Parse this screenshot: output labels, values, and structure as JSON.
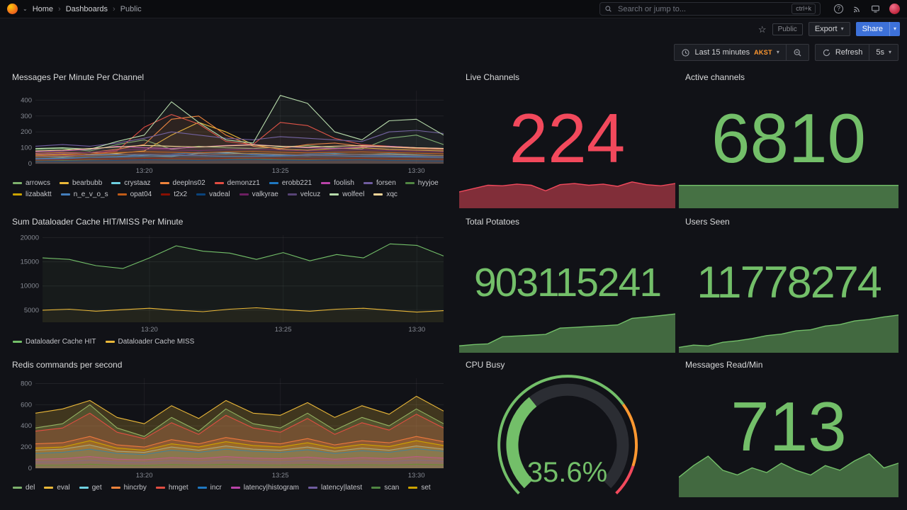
{
  "nav": {
    "breadcrumbs": [
      "Home",
      "Dashboards",
      "Public"
    ],
    "search_placeholder": "Search or jump to...",
    "shortcut": "ctrl+k"
  },
  "toolbar": {
    "visibility_badge": "Public",
    "export_label": "Export",
    "share_label": "Share"
  },
  "timebar": {
    "range_label": "Last 15 minutes",
    "timezone": "AKST",
    "refresh_label": "Refresh",
    "interval": "5s"
  },
  "icons": {
    "star": "☆",
    "chevron": "▾",
    "chevron_small": "⌄",
    "sep": "›",
    "help": "?"
  },
  "colors": {
    "background": "#111217",
    "accent_blue": "#3d71d9",
    "stat_green": "#73BF69",
    "stat_red": "#F2495C",
    "threshold_orange": "#FF9830",
    "timezone_orange": "#ff9830"
  },
  "panels": {
    "messages": {
      "title": "Messages Per Minute Per Channel"
    },
    "live": {
      "title": "Live Channels"
    },
    "active": {
      "title": "Active channels"
    },
    "dataloader": {
      "title": "Sum Dataloader Cache HIT/MISS Per Minute"
    },
    "potatoes": {
      "title": "Total Potatoes"
    },
    "users": {
      "title": "Users Seen"
    },
    "redis": {
      "title": "Redis commands per second"
    },
    "cpu": {
      "title": "CPU Busy"
    },
    "msgread": {
      "title": "Messages Read/Min"
    }
  },
  "chart_data": [
    {
      "id": "messages_per_minute",
      "type": "line",
      "title": "Messages Per Minute Per Channel",
      "xlabel": "",
      "ylabel": "",
      "ylim": [
        0,
        460
      ],
      "yticks": [
        0,
        100,
        200,
        300,
        400
      ],
      "x_ticks": [
        {
          "i": 4,
          "label": "13:20"
        },
        {
          "i": 9,
          "label": "13:25"
        },
        {
          "i": 14,
          "label": "13:30"
        }
      ],
      "fill_opacity": 0.05,
      "legend_position": "bottom",
      "series": [
        {
          "name": "arrowcs",
          "color": "#7EB26D",
          "values": [
            90,
            95,
            80,
            120,
            150,
            90,
            110,
            100,
            95,
            105,
            115,
            100,
            92,
            160,
            180,
            120
          ]
        },
        {
          "name": "bearbubb",
          "color": "#EAB839",
          "values": [
            55,
            60,
            70,
            65,
            80,
            180,
            260,
            200,
            120,
            90,
            85,
            95,
            100,
            90,
            85,
            80
          ]
        },
        {
          "name": "crystaaz",
          "color": "#6ED0E0",
          "values": [
            45,
            40,
            55,
            60,
            50,
            45,
            65,
            70,
            60,
            55,
            50,
            60,
            58,
            62,
            55,
            50
          ]
        },
        {
          "name": "deeplns02",
          "color": "#EF843C",
          "values": [
            65,
            70,
            70,
            90,
            120,
            280,
            300,
            180,
            110,
            95,
            120,
            130,
            110,
            105,
            95,
            90
          ]
        },
        {
          "name": "demonzz1",
          "color": "#E24D42",
          "values": [
            45,
            50,
            60,
            80,
            230,
            310,
            250,
            140,
            120,
            260,
            240,
            160,
            120,
            110,
            100,
            95
          ]
        },
        {
          "name": "erobb221",
          "color": "#1F78C1",
          "values": [
            28,
            30,
            40,
            45,
            55,
            60,
            70,
            65,
            55,
            50,
            60,
            65,
            55,
            50,
            45,
            40
          ]
        },
        {
          "name": "foolish",
          "color": "#BA43A9",
          "values": [
            75,
            80,
            90,
            110,
            100,
            95,
            105,
            115,
            120,
            110,
            100,
            95,
            105,
            110,
            100,
            95
          ]
        },
        {
          "name": "forsen",
          "color": "#705DA0",
          "values": [
            110,
            120,
            110,
            130,
            160,
            200,
            180,
            160,
            150,
            170,
            160,
            150,
            140,
            200,
            210,
            190
          ]
        },
        {
          "name": "hyyjoe",
          "color": "#508642",
          "values": [
            18,
            20,
            25,
            30,
            35,
            30,
            28,
            32,
            30,
            28,
            26,
            30,
            32,
            28,
            26,
            25
          ]
        },
        {
          "name": "lizabaktt",
          "color": "#CCA300",
          "values": [
            42,
            45,
            50,
            55,
            60,
            58,
            54,
            60,
            65,
            60,
            55,
            58,
            60,
            56,
            52,
            50
          ]
        },
        {
          "name": "n_e_v_o_s",
          "color": "#447EBC",
          "values": [
            32,
            35,
            40,
            42,
            48,
            52,
            50,
            46,
            44,
            48,
            52,
            50,
            46,
            44,
            42,
            40
          ]
        },
        {
          "name": "opat04",
          "color": "#C15C17",
          "values": [
            50,
            55,
            60,
            70,
            75,
            72,
            68,
            74,
            78,
            72,
            68,
            72,
            74,
            70,
            66,
            62
          ]
        },
        {
          "name": "t2x2",
          "color": "#890F02",
          "values": [
            22,
            25,
            28,
            30,
            34,
            32,
            30,
            34,
            36,
            32,
            30,
            32,
            34,
            30,
            28,
            26
          ]
        },
        {
          "name": "vadeal",
          "color": "#0A437C",
          "values": [
            14,
            15,
            18,
            20,
            24,
            22,
            20,
            24,
            26,
            22,
            20,
            22,
            24,
            20,
            18,
            16
          ]
        },
        {
          "name": "valkyrae",
          "color": "#6D1F62",
          "values": [
            60,
            65,
            70,
            85,
            90,
            86,
            82,
            88,
            92,
            86,
            80,
            84,
            88,
            82,
            78,
            74
          ]
        },
        {
          "name": "velcuz",
          "color": "#584477",
          "values": [
            44,
            48,
            52,
            56,
            60,
            58,
            54,
            58,
            62,
            58,
            54,
            56,
            58,
            54,
            50,
            48
          ]
        },
        {
          "name": "wolfeel",
          "color": "#B7DBAB",
          "values": [
            95,
            100,
            90,
            140,
            180,
            390,
            260,
            150,
            130,
            430,
            380,
            200,
            150,
            270,
            280,
            180
          ]
        },
        {
          "name": "xqc",
          "color": "#F4D598",
          "values": [
            80,
            85,
            95,
            105,
            115,
            110,
            105,
            112,
            118,
            110,
            104,
            110,
            114,
            106,
            100,
            96
          ]
        }
      ]
    },
    {
      "id": "dataloader",
      "type": "line",
      "title": "Sum Dataloader Cache HIT/MISS Per Minute",
      "xlabel": "",
      "ylabel": "",
      "ylim": [
        2500,
        20500
      ],
      "yticks": [
        5000,
        10000,
        15000,
        20000
      ],
      "margin_left": 44,
      "x_ticks": [
        {
          "i": 4,
          "label": "13:20"
        },
        {
          "i": 9,
          "label": "13:25"
        },
        {
          "i": 14,
          "label": "13:30"
        }
      ],
      "fill_opacity": 0.06,
      "legend_position": "bottom",
      "series": [
        {
          "name": "Dataloader Cache HIT",
          "color": "#73BF69",
          "values": [
            15800,
            15500,
            14200,
            13600,
            15800,
            18300,
            17200,
            16800,
            15500,
            16900,
            15200,
            16500,
            15800,
            18700,
            18400,
            16200
          ]
        },
        {
          "name": "Dataloader Cache MISS",
          "color": "#EAB839",
          "values": [
            5000,
            5200,
            4800,
            5100,
            5400,
            5000,
            4700,
            5200,
            5500,
            5100,
            4800,
            5200,
            5400,
            5000,
            4600,
            4900
          ]
        }
      ]
    },
    {
      "id": "redis",
      "type": "line",
      "title": "Redis commands per second",
      "xlabel": "",
      "ylabel": "",
      "ylim": [
        0,
        850
      ],
      "yticks": [
        0,
        200,
        400,
        600,
        800
      ],
      "x_ticks": [
        {
          "i": 4,
          "label": "13:20"
        },
        {
          "i": 9,
          "label": "13:25"
        },
        {
          "i": 14,
          "label": "13:30"
        }
      ],
      "fill_opacity": 0.22,
      "legend_position": "bottom",
      "series": [
        {
          "name": "del",
          "color": "#7EB26D",
          "values": [
            380,
            420,
            600,
            380,
            300,
            480,
            350,
            560,
            420,
            380,
            520,
            360,
            480,
            400,
            560,
            420
          ]
        },
        {
          "name": "eval",
          "color": "#EAB839",
          "values": [
            520,
            560,
            640,
            480,
            420,
            590,
            470,
            640,
            520,
            500,
            620,
            480,
            590,
            510,
            680,
            540
          ]
        },
        {
          "name": "get",
          "color": "#6ED0E0",
          "values": [
            170,
            180,
            220,
            160,
            150,
            200,
            170,
            210,
            180,
            170,
            200,
            160,
            190,
            170,
            210,
            180
          ]
        },
        {
          "name": "hincrby",
          "color": "#EF843C",
          "values": [
            230,
            240,
            300,
            220,
            200,
            270,
            230,
            290,
            250,
            230,
            280,
            220,
            260,
            240,
            300,
            250
          ]
        },
        {
          "name": "hmget",
          "color": "#E24D42",
          "values": [
            350,
            380,
            520,
            340,
            280,
            430,
            320,
            500,
            380,
            340,
            470,
            320,
            430,
            360,
            510,
            380
          ]
        },
        {
          "name": "incr",
          "color": "#1F78C1",
          "values": [
            140,
            150,
            180,
            140,
            130,
            170,
            150,
            180,
            160,
            150,
            175,
            140,
            165,
            150,
            185,
            160
          ]
        },
        {
          "name": "latency|histogram",
          "color": "#BA43A9",
          "values": [
            85,
            90,
            110,
            85,
            80,
            100,
            90,
            110,
            95,
            90,
            105,
            85,
            100,
            90,
            110,
            95
          ]
        },
        {
          "name": "latency|latest",
          "color": "#705DA0",
          "values": [
            58,
            60,
            75,
            58,
            55,
            70,
            60,
            75,
            65,
            60,
            72,
            58,
            68,
            62,
            76,
            65
          ]
        },
        {
          "name": "scan",
          "color": "#508642",
          "values": [
            28,
            30,
            38,
            28,
            26,
            35,
            30,
            38,
            32,
            30,
            36,
            28,
            34,
            30,
            38,
            32
          ]
        },
        {
          "name": "set",
          "color": "#CCA300",
          "values": [
            190,
            200,
            260,
            190,
            170,
            230,
            200,
            250,
            215,
            200,
            240,
            190,
            225,
            205,
            260,
            215
          ]
        }
      ]
    },
    {
      "id": "live_channels",
      "type": "stat",
      "title": "Live Channels",
      "value": "224",
      "color": "#F2495C",
      "spark": {
        "values": [
          140,
          170,
          200,
          195,
          210,
          200,
          150,
          205,
          215,
          200,
          210,
          190,
          230,
          205,
          195,
          215
        ],
        "max": 235,
        "fill_opacity": 0.5
      }
    },
    {
      "id": "active_channels",
      "type": "stat",
      "title": "Active channels",
      "value": "6810",
      "color": "#73BF69",
      "spark": {
        "values": [
          100,
          100,
          100,
          100,
          100,
          100,
          100,
          100,
          100,
          100,
          100,
          100,
          100,
          100,
          100,
          100
        ],
        "max": 100,
        "fill_opacity": 0.55
      }
    },
    {
      "id": "total_potatoes",
      "type": "stat",
      "title": "Total Potatoes",
      "value": "903115241",
      "color": "#73BF69",
      "spark": {
        "values": [
          15,
          18,
          20,
          38,
          40,
          42,
          44,
          60,
          62,
          64,
          66,
          68,
          85,
          88,
          92,
          96
        ],
        "max": 100,
        "fill_opacity": 0.5
      }
    },
    {
      "id": "users_seen",
      "type": "stat",
      "title": "Users Seen",
      "value": "11778274",
      "color": "#73BF69",
      "spark": {
        "values": [
          12,
          18,
          16,
          26,
          30,
          36,
          44,
          48,
          57,
          60,
          70,
          74,
          84,
          88,
          95,
          100
        ],
        "max": 100,
        "fill_opacity": 0.5
      }
    },
    {
      "id": "cpu_busy",
      "type": "gauge",
      "title": "CPU Busy",
      "value": 35.6,
      "display": "35.6%",
      "unit": "%",
      "min": 0,
      "max": 100,
      "color": "#73BF69",
      "thresholds": [
        {
          "from": 0,
          "to": 70,
          "color": "#73BF69"
        },
        {
          "from": 70,
          "to": 90,
          "color": "#FF9830"
        },
        {
          "from": 90,
          "to": 100,
          "color": "#F2495C"
        }
      ]
    },
    {
      "id": "messages_read",
      "type": "stat",
      "title": "Messages Read/Min",
      "value": "713",
      "color": "#73BF69",
      "spark": {
        "values": [
          40,
          65,
          85,
          55,
          45,
          60,
          50,
          70,
          55,
          45,
          65,
          55,
          75,
          90,
          60,
          70
        ],
        "max": 95,
        "fill_opacity": 0.5
      }
    }
  ]
}
